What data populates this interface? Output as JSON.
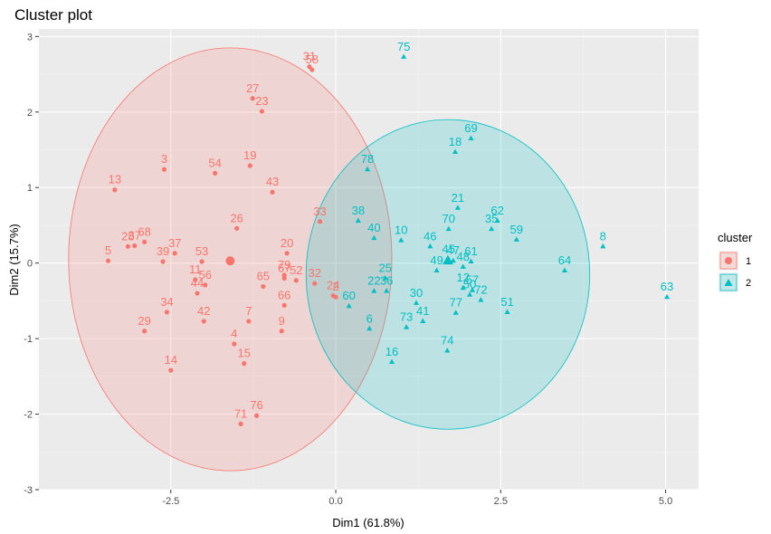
{
  "chart_data": {
    "type": "scatter",
    "title": "Cluster plot",
    "xlabel": "Dim1 (61.8%)",
    "ylabel": "Dim2 (15.7%)",
    "xlim": [
      -4.5,
      5.5
    ],
    "ylim": [
      -3.0,
      3.1
    ],
    "xticks": [
      -2.5,
      0.0,
      2.5,
      5.0
    ],
    "xtick_labels": [
      "-2.5",
      "0.0",
      "2.5",
      "5.0"
    ],
    "yticks": [
      -3,
      -2,
      -1,
      0,
      1,
      2,
      3
    ],
    "ytick_labels": [
      "-3",
      "-2",
      "-1",
      "0",
      "1",
      "2",
      "3"
    ],
    "grid": true,
    "legend": {
      "title": "cluster",
      "position": "right",
      "entries": [
        {
          "label": "1",
          "color": "#F8766D",
          "shape": "circle"
        },
        {
          "label": "2",
          "color": "#00BFC4",
          "shape": "triangle"
        }
      ]
    },
    "ellipses": [
      {
        "cluster": "1",
        "color": "#F8766D",
        "fill": "#F8766D",
        "center": [
          -1.6,
          0.05
        ],
        "rx": 2.45,
        "ry": 2.8
      },
      {
        "cluster": "2",
        "color": "#00BFC4",
        "fill": "#00BFC4",
        "center": [
          1.7,
          -0.15
        ],
        "rx": 2.15,
        "ry": 2.05
      }
    ],
    "centroids": [
      {
        "cluster": "1",
        "x": -1.6,
        "y": 0.03
      },
      {
        "cluster": "2",
        "x": 1.7,
        "y": 0.03
      }
    ],
    "series": [
      {
        "cluster": "1",
        "color": "#F8766D",
        "shape": "circle",
        "points": [
          {
            "label": "31",
            "x": -0.4,
            "y": 2.6
          },
          {
            "label": "58",
            "x": -0.36,
            "y": 2.56
          },
          {
            "label": "27",
            "x": -1.26,
            "y": 2.18
          },
          {
            "label": "23",
            "x": -1.12,
            "y": 2.01
          },
          {
            "label": "3",
            "x": -2.6,
            "y": 1.24
          },
          {
            "label": "54",
            "x": -1.83,
            "y": 1.19
          },
          {
            "label": "19",
            "x": -1.3,
            "y": 1.29
          },
          {
            "label": "43",
            "x": -0.96,
            "y": 0.94
          },
          {
            "label": "13",
            "x": -3.35,
            "y": 0.97
          },
          {
            "label": "26",
            "x": -1.5,
            "y": 0.46
          },
          {
            "label": "33",
            "x": -0.24,
            "y": 0.55
          },
          {
            "label": "28",
            "x": -3.15,
            "y": 0.22
          },
          {
            "label": "37",
            "x": -3.05,
            "y": 0.23
          },
          {
            "label": "68",
            "x": -2.9,
            "y": 0.28
          },
          {
            "label": "5",
            "x": -3.45,
            "y": 0.03
          },
          {
            "label": "39",
            "x": -2.62,
            "y": 0.02
          },
          {
            "label": "37",
            "x": -2.44,
            "y": 0.13
          },
          {
            "label": "53",
            "x": -2.03,
            "y": 0.02
          },
          {
            "label": "11",
            "x": -2.13,
            "y": -0.22
          },
          {
            "label": "56",
            "x": -1.98,
            "y": -0.29
          },
          {
            "label": "44",
            "x": -2.1,
            "y": -0.4
          },
          {
            "label": "20",
            "x": -0.74,
            "y": 0.13
          },
          {
            "label": "79",
            "x": -0.78,
            "y": -0.16
          },
          {
            "label": "67",
            "x": -0.78,
            "y": -0.2
          },
          {
            "label": "52",
            "x": -0.6,
            "y": -0.23
          },
          {
            "label": "65",
            "x": -1.1,
            "y": -0.31
          },
          {
            "label": "32",
            "x": -0.32,
            "y": -0.27
          },
          {
            "label": "24",
            "x": -0.04,
            "y": -0.43
          },
          {
            "label": "2",
            "x": 0.0,
            "y": -0.45
          },
          {
            "label": "34",
            "x": -2.56,
            "y": -0.65
          },
          {
            "label": "42",
            "x": -2.0,
            "y": -0.77
          },
          {
            "label": "66",
            "x": -0.78,
            "y": -0.56
          },
          {
            "label": "7",
            "x": -1.32,
            "y": -0.77
          },
          {
            "label": "9",
            "x": -0.82,
            "y": -0.9
          },
          {
            "label": "29",
            "x": -2.9,
            "y": -0.9
          },
          {
            "label": "4",
            "x": -1.54,
            "y": -1.07
          },
          {
            "label": "15",
            "x": -1.39,
            "y": -1.33
          },
          {
            "label": "14",
            "x": -2.5,
            "y": -1.42
          },
          {
            "label": "76",
            "x": -1.2,
            "y": -2.02
          },
          {
            "label": "71",
            "x": -1.44,
            "y": -2.13
          }
        ]
      },
      {
        "cluster": "2",
        "color": "#00BFC4",
        "shape": "triangle",
        "points": [
          {
            "label": "75",
            "x": 1.03,
            "y": 2.73
          },
          {
            "label": "69",
            "x": 2.05,
            "y": 1.65
          },
          {
            "label": "18",
            "x": 1.81,
            "y": 1.47
          },
          {
            "label": "78",
            "x": 0.48,
            "y": 1.24
          },
          {
            "label": "21",
            "x": 1.85,
            "y": 0.73
          },
          {
            "label": "62",
            "x": 2.45,
            "y": 0.56
          },
          {
            "label": "35",
            "x": 2.36,
            "y": 0.45
          },
          {
            "label": "59",
            "x": 2.74,
            "y": 0.31
          },
          {
            "label": "70",
            "x": 1.71,
            "y": 0.45
          },
          {
            "label": "38",
            "x": 0.34,
            "y": 0.56
          },
          {
            "label": "40",
            "x": 0.58,
            "y": 0.33
          },
          {
            "label": "10",
            "x": 0.99,
            "y": 0.3
          },
          {
            "label": "46",
            "x": 1.43,
            "y": 0.22
          },
          {
            "label": "8",
            "x": 4.05,
            "y": 0.22
          },
          {
            "label": "45",
            "x": 1.71,
            "y": 0.05
          },
          {
            "label": "47",
            "x": 1.78,
            "y": 0.03
          },
          {
            "label": "61",
            "x": 2.05,
            "y": 0.02
          },
          {
            "label": "48",
            "x": 1.93,
            "y": -0.05
          },
          {
            "label": "64",
            "x": 3.47,
            "y": -0.1
          },
          {
            "label": "49",
            "x": 1.53,
            "y": -0.1
          },
          {
            "label": "25",
            "x": 0.75,
            "y": -0.2
          },
          {
            "label": "22",
            "x": 0.58,
            "y": -0.37
          },
          {
            "label": "36",
            "x": 0.77,
            "y": -0.37
          },
          {
            "label": "12",
            "x": 1.93,
            "y": -0.33
          },
          {
            "label": "57",
            "x": 2.07,
            "y": -0.36
          },
          {
            "label": "50",
            "x": 2.03,
            "y": -0.42
          },
          {
            "label": "72",
            "x": 2.2,
            "y": -0.49
          },
          {
            "label": "63",
            "x": 5.02,
            "y": -0.45
          },
          {
            "label": "60",
            "x": 0.2,
            "y": -0.57
          },
          {
            "label": "30",
            "x": 1.22,
            "y": -0.53
          },
          {
            "label": "41",
            "x": 1.32,
            "y": -0.77
          },
          {
            "label": "73",
            "x": 1.07,
            "y": -0.85
          },
          {
            "label": "77",
            "x": 1.82,
            "y": -0.66
          },
          {
            "label": "51",
            "x": 2.6,
            "y": -0.65
          },
          {
            "label": "6",
            "x": 0.51,
            "y": -0.87
          },
          {
            "label": "74",
            "x": 1.69,
            "y": -1.16
          },
          {
            "label": "16",
            "x": 0.85,
            "y": -1.31
          }
        ]
      }
    ]
  }
}
